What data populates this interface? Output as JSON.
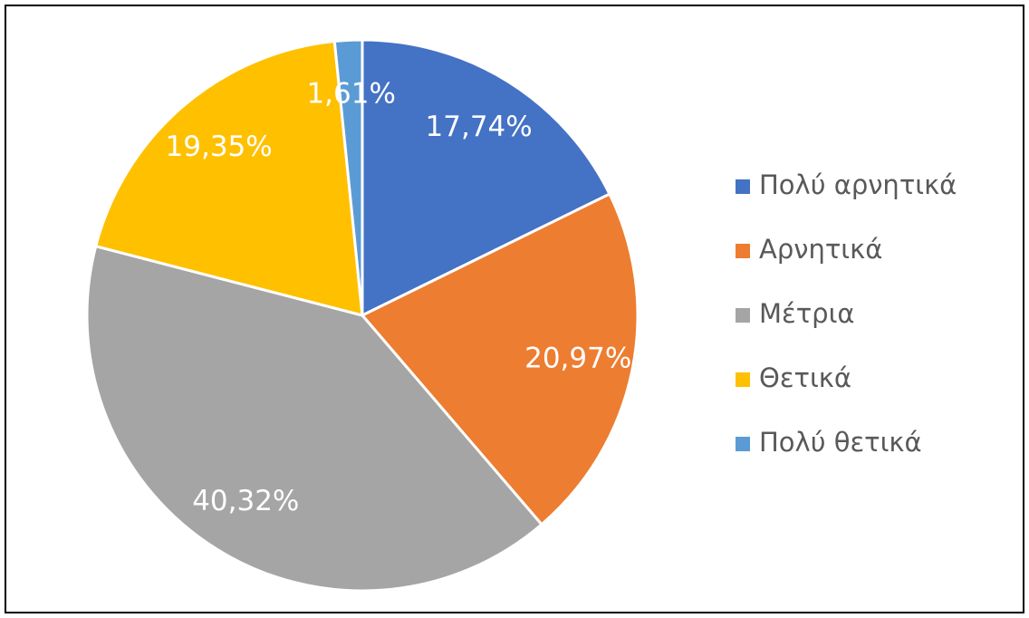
{
  "chart_data": {
    "type": "pie",
    "categories": [
      "Πολύ αρνητικά",
      "Αρνητικά",
      "Μέτρια",
      "Θετικά",
      "Πολύ θετικά"
    ],
    "values": [
      17.74,
      20.97,
      40.32,
      19.35,
      1.61
    ],
    "value_labels": [
      "17,74%",
      "20,97%",
      "40,32%",
      "19,35%",
      "1,61%"
    ],
    "colors": [
      "#4472c4",
      "#ed7d31",
      "#a5a5a5",
      "#ffc000",
      "#5b9bd5"
    ],
    "legend": "right"
  }
}
